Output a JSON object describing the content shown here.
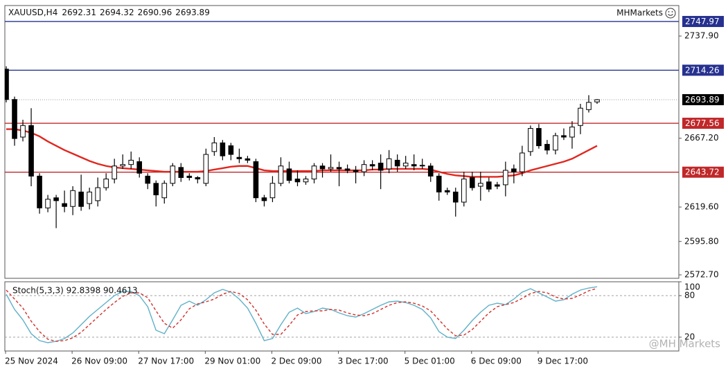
{
  "chart_data": [
    {
      "type": "candlestick",
      "symbol": "XAUUSD,H4",
      "header_values": [
        2692.31,
        2694.32,
        2690.96,
        2693.89
      ],
      "brand": "MHMarkets",
      "watermark": "@MH Markets",
      "up_color": "#ffffff",
      "down_color": "#000000",
      "categories": [
        "25 Nov 2024",
        null,
        null,
        null,
        null,
        null,
        null,
        null,
        "26 Nov 09:00",
        null,
        null,
        null,
        null,
        null,
        null,
        null,
        "27 Nov 17:00",
        null,
        null,
        null,
        null,
        null,
        null,
        null,
        "29 Nov 01:00",
        null,
        null,
        null,
        null,
        null,
        null,
        null,
        "2 Dec 09:00",
        null,
        null,
        null,
        null,
        null,
        null,
        null,
        "3 Dec 17:00",
        null,
        null,
        null,
        null,
        null,
        null,
        null,
        "5 Dec 01:00",
        null,
        null,
        null,
        null,
        null,
        null,
        null,
        "6 Dec 09:00",
        null,
        null,
        null,
        null,
        null,
        null,
        null,
        "9 Dec 17:00",
        null,
        null,
        null,
        null,
        null,
        null,
        null
      ],
      "open": [
        2715,
        2694,
        2668,
        2676,
        2641,
        2619,
        2626,
        2622,
        2620,
        2630,
        2622,
        2624,
        2633,
        2639,
        2648,
        2649,
        2651,
        2641,
        2636,
        2626,
        2636,
        2647,
        2641,
        2640,
        2636,
        2658,
        2664,
        2662,
        2654,
        2653,
        2651,
        2626,
        2626,
        2636,
        2646,
        2639,
        2637,
        2639,
        2648,
        2646,
        2647,
        2646,
        2645,
        2644,
        2649,
        2650,
        2646,
        2652,
        2648,
        2649,
        2648,
        2648,
        2641,
        2631,
        2630,
        2623,
        2640,
        2634,
        2637,
        2635,
        2635,
        2646,
        2644,
        2658,
        2674,
        2663,
        2659,
        2669,
        2668,
        2676,
        2687,
        2692.31
      ],
      "high": [
        2717,
        2696,
        2680,
        2688,
        2643,
        2628,
        2628,
        2631,
        2634,
        2642,
        2633,
        2640,
        2643,
        2653,
        2656,
        2658,
        2654,
        2643,
        2638,
        2638,
        2650,
        2650,
        2643,
        2641,
        2660,
        2668,
        2666,
        2664,
        2660,
        2655,
        2653,
        2628,
        2641,
        2654,
        2651,
        2645,
        2641,
        2650,
        2650,
        2656,
        2651,
        2649,
        2648,
        2652,
        2652,
        2656,
        2659,
        2656,
        2655,
        2656,
        2653,
        2650,
        2643,
        2633,
        2633,
        2644,
        2644,
        2644,
        2640,
        2637,
        2651,
        2649,
        2662,
        2676,
        2677,
        2666,
        2671,
        2674,
        2679,
        2691,
        2697,
        2694.32
      ],
      "low": [
        2692,
        2662,
        2665,
        2634,
        2615,
        2616,
        2605,
        2616,
        2614,
        2617,
        2618,
        2620,
        2631,
        2636,
        2646,
        2646,
        2640,
        2632,
        2620,
        2622,
        2634,
        2637,
        2638,
        2636,
        2634,
        2655,
        2652,
        2652,
        2650,
        2650,
        2623,
        2620,
        2623,
        2634,
        2636,
        2634,
        2635,
        2636,
        2640,
        2644,
        2634,
        2643,
        2636,
        2641,
        2645,
        2632,
        2643,
        2644,
        2646,
        2645,
        2646,
        2637,
        2624,
        2628,
        2613,
        2620,
        2631,
        2624,
        2630,
        2632,
        2627,
        2636,
        2641,
        2655,
        2660,
        2656,
        2656,
        2666,
        2660,
        2670,
        2685,
        2690.96
      ],
      "close": [
        2694,
        2667,
        2676,
        2641,
        2619,
        2625,
        2624,
        2620,
        2631,
        2620,
        2630,
        2633,
        2639,
        2648,
        2649,
        2652,
        2643,
        2636,
        2628,
        2636,
        2648,
        2640,
        2640,
        2639,
        2656,
        2664,
        2655,
        2656,
        2653,
        2652,
        2626,
        2624,
        2636,
        2648,
        2638,
        2637,
        2639,
        2648,
        2646,
        2647,
        2646,
        2645,
        2644,
        2649,
        2648,
        2645,
        2653,
        2648,
        2650,
        2648,
        2648.5,
        2641,
        2630,
        2630,
        2623,
        2639,
        2633,
        2636,
        2632,
        2634,
        2645,
        2644,
        2657,
        2674,
        2662,
        2659,
        2669,
        2668,
        2675,
        2688,
        2692,
        2693.89
      ],
      "series": [
        {
          "color": "#e0261f",
          "values": [
            2673.5,
            2673.5,
            2672.5,
            2671,
            2668.5,
            2665,
            2662,
            2659,
            2656.5,
            2654,
            2651.5,
            2649.5,
            2648,
            2647,
            2646.5,
            2646,
            2645.5,
            2645,
            2644.5,
            2644,
            2644,
            2644,
            2644,
            2644,
            2644.5,
            2645.5,
            2646.5,
            2647.5,
            2648,
            2648,
            2646.5,
            2645,
            2644.5,
            2644.5,
            2644.5,
            2644.5,
            2644.5,
            2644.5,
            2645,
            2645,
            2645,
            2645,
            2645,
            2645,
            2645.5,
            2645.5,
            2646,
            2646,
            2646,
            2646,
            2646,
            2645.5,
            2644,
            2642.5,
            2641.5,
            2641,
            2640.5,
            2640.5,
            2640.5,
            2640.5,
            2641,
            2641.5,
            2643,
            2645,
            2646.5,
            2648,
            2649.5,
            2651,
            2653,
            2656,
            2659,
            2662
          ]
        }
      ],
      "levels": [
        {
          "value": 2747.97,
          "color": "#26318f"
        },
        {
          "value": 2714.26,
          "color": "#26318f"
        },
        {
          "value": 2693.89,
          "color": "#000000",
          "style": "dotted"
        },
        {
          "value": 2677.56,
          "color": "#c0282a"
        },
        {
          "value": 2643.72,
          "color": "#c0282a"
        }
      ],
      "ylim": [
        2570.3,
        2759.0
      ],
      "yticks": [
        {
          "value": 2737.9,
          "label": "2737.90"
        },
        {
          "value": 2667.2,
          "label": "2667.20"
        },
        {
          "value": 2619.6,
          "label": "2619.60"
        },
        {
          "value": 2595.8,
          "label": "2595.80"
        },
        {
          "value": 2572.7,
          "label": "2572.70"
        }
      ]
    },
    {
      "type": "line",
      "title": "Stoch(5,3,3) 92.8398 90.4613",
      "series": [
        {
          "color": "#5fb0c8",
          "values": [
            82,
            60,
            45,
            25,
            15,
            12,
            14,
            18,
            26,
            38,
            50,
            60,
            70,
            80,
            86,
            86,
            80,
            64,
            30,
            25,
            45,
            66,
            72,
            66,
            74,
            84,
            89,
            85,
            75,
            62,
            40,
            15,
            18,
            38,
            56,
            62,
            54,
            57,
            62,
            60,
            55,
            51,
            49,
            54,
            60,
            66,
            71,
            72,
            70,
            66,
            60,
            48,
            28,
            20,
            18,
            30,
            44,
            56,
            66,
            69,
            67,
            75,
            85,
            90,
            84,
            78,
            72,
            74,
            82,
            88,
            91,
            92.8398
          ]
        },
        {
          "color": "#d0302a",
          "dashed": true,
          "values": [
            88,
            75,
            62,
            43,
            28,
            17,
            14,
            15,
            19,
            27,
            38,
            49,
            60,
            70,
            79,
            84,
            84,
            77,
            58,
            40,
            33,
            45,
            61,
            68,
            71,
            75,
            82,
            86,
            83,
            74,
            59,
            39,
            24,
            24,
            37,
            52,
            57,
            58,
            58,
            60,
            59,
            55,
            52,
            51,
            54,
            60,
            66,
            70,
            71,
            69,
            65,
            58,
            45,
            32,
            22,
            23,
            31,
            43,
            55,
            64,
            67,
            70,
            76,
            83,
            86,
            84,
            78,
            75,
            76,
            81,
            87,
            90.4613
          ]
        }
      ],
      "levels": [
        80,
        20
      ],
      "ylim": [
        0,
        100
      ],
      "yticks": [
        100,
        80,
        20
      ]
    }
  ]
}
